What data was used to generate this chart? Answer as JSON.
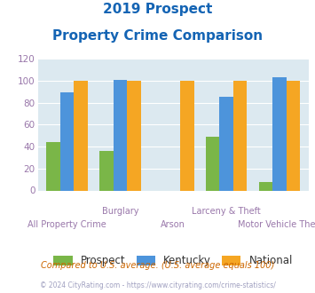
{
  "title_line1": "2019 Prospect",
  "title_line2": "Property Crime Comparison",
  "title_color": "#1464b4",
  "categories": [
    "All Property Crime",
    "Burglary",
    "Arson",
    "Larceny & Theft",
    "Motor Vehicle Theft"
  ],
  "x_labels_row1": [
    "",
    "Burglary",
    "",
    "Larceny & Theft",
    ""
  ],
  "x_labels_row2": [
    "All Property Crime",
    "",
    "Arson",
    "",
    "Motor Vehicle Theft"
  ],
  "prospect_values": [
    44,
    36,
    0,
    49,
    8
  ],
  "kentucky_values": [
    89,
    101,
    0,
    85,
    103
  ],
  "national_values": [
    100,
    100,
    100,
    100,
    100
  ],
  "prospect_color": "#7ab648",
  "kentucky_color": "#4d94db",
  "national_color": "#f5a623",
  "ylim": [
    0,
    120
  ],
  "yticks": [
    0,
    20,
    40,
    60,
    80,
    100,
    120
  ],
  "background_color": "#dce9f0",
  "legend_labels": [
    "Prospect",
    "Kentucky",
    "National"
  ],
  "footnote1": "Compared to U.S. average. (U.S. average equals 100)",
  "footnote2": "© 2024 CityRating.com - https://www.cityrating.com/crime-statistics/",
  "footnote1_color": "#cc6600",
  "footnote2_color": "#a0a0c0",
  "label_color": "#9977aa",
  "ytick_color": "#9977aa"
}
